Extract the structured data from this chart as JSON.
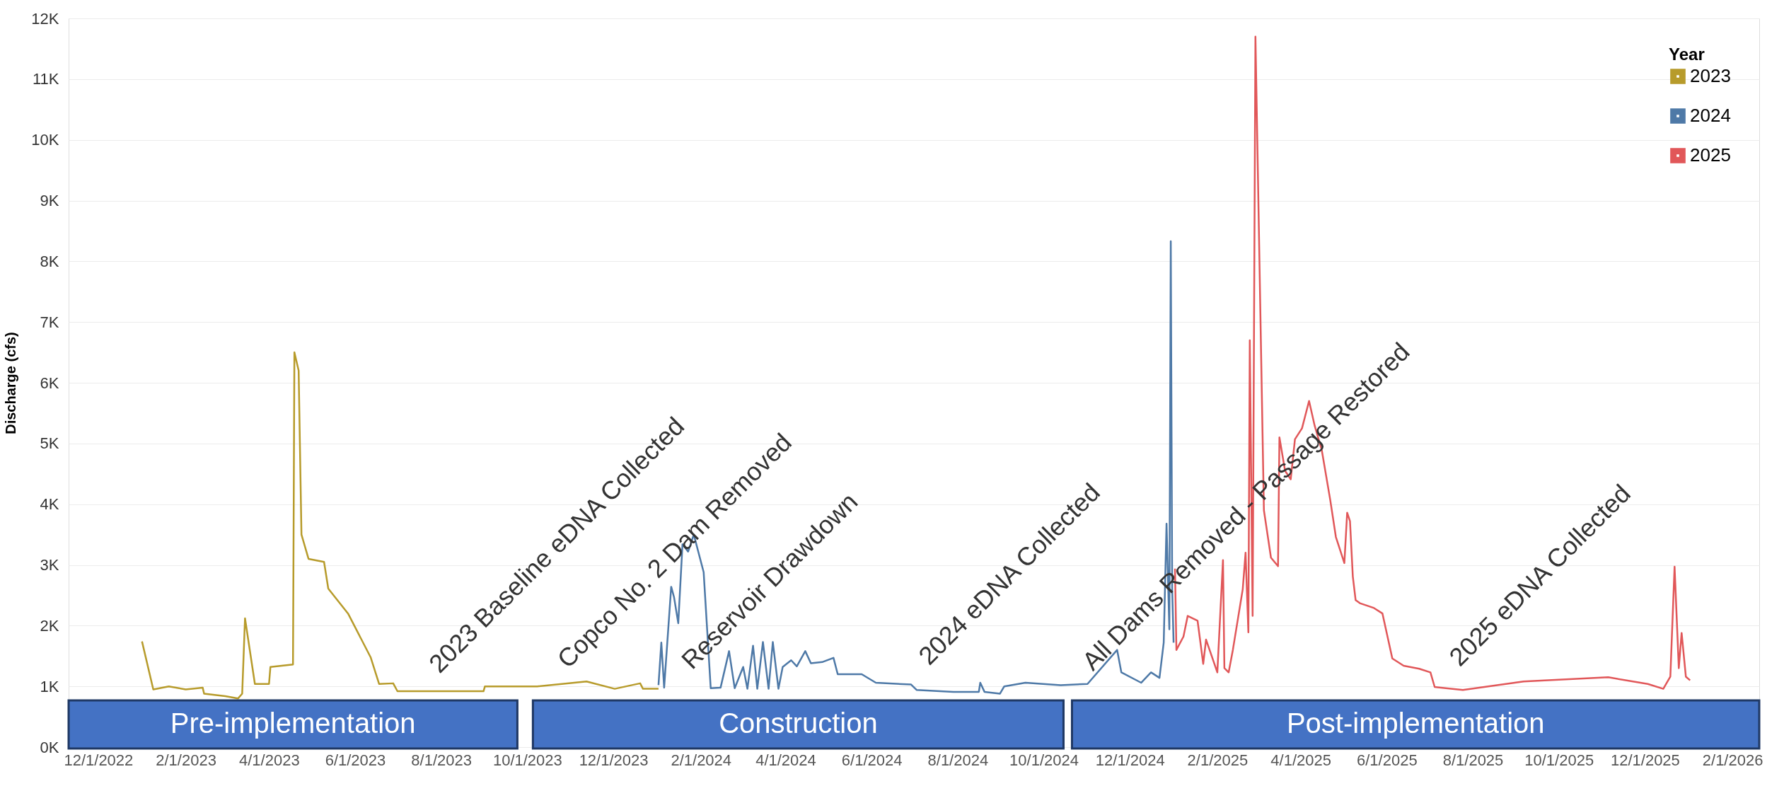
{
  "chart_data": {
    "type": "line",
    "ylabel": "Discharge (cfs)",
    "legend_title": "Year",
    "legend": "top right",
    "grid": "y",
    "marker": "none",
    "line_style": "solid",
    "xlim": [
      "2022-11-10",
      "2026-02-20"
    ],
    "ylim": [
      0,
      12000
    ],
    "xticks": [
      {
        "value": "2022-12-01",
        "label": "12/1/2022"
      },
      {
        "value": "2023-02-01",
        "label": "2/1/2023"
      },
      {
        "value": "2023-04-01",
        "label": "4/1/2023"
      },
      {
        "value": "2023-06-01",
        "label": "6/1/2023"
      },
      {
        "value": "2023-08-01",
        "label": "8/1/2023"
      },
      {
        "value": "2023-10-01",
        "label": "10/1/2023"
      },
      {
        "value": "2023-12-01",
        "label": "12/1/2023"
      },
      {
        "value": "2024-02-01",
        "label": "2/1/2024"
      },
      {
        "value": "2024-04-01",
        "label": "4/1/2024"
      },
      {
        "value": "2024-06-01",
        "label": "6/1/2024"
      },
      {
        "value": "2024-08-01",
        "label": "8/1/2024"
      },
      {
        "value": "2024-10-01",
        "label": "10/1/2024"
      },
      {
        "value": "2024-12-01",
        "label": "12/1/2024"
      },
      {
        "value": "2025-02-01",
        "label": "2/1/2025"
      },
      {
        "value": "2025-04-01",
        "label": "4/1/2025"
      },
      {
        "value": "2025-06-01",
        "label": "6/1/2025"
      },
      {
        "value": "2025-08-01",
        "label": "8/1/2025"
      },
      {
        "value": "2025-10-01",
        "label": "10/1/2025"
      },
      {
        "value": "2025-12-01",
        "label": "12/1/2025"
      },
      {
        "value": "2026-02-01",
        "label": "2/1/2026"
      }
    ],
    "yticks": [
      {
        "value": 0,
        "label": "0K"
      },
      {
        "value": 1000,
        "label": "1K"
      },
      {
        "value": 2000,
        "label": "2K"
      },
      {
        "value": 3000,
        "label": "3K"
      },
      {
        "value": 4000,
        "label": "4K"
      },
      {
        "value": 5000,
        "label": "5K"
      },
      {
        "value": 6000,
        "label": "6K"
      },
      {
        "value": 7000,
        "label": "7K"
      },
      {
        "value": 8000,
        "label": "8K"
      },
      {
        "value": 9000,
        "label": "9K"
      },
      {
        "value": 10000,
        "label": "10K"
      },
      {
        "value": 11000,
        "label": "11K"
      },
      {
        "value": 12000,
        "label": "12K"
      }
    ],
    "series": [
      {
        "name": "2023",
        "color": "#b79b2b",
        "x": [
          "2023-01-01",
          "2023-01-09",
          "2023-01-20",
          "2023-02-01",
          "2023-02-13",
          "2023-02-14",
          "2023-03-01",
          "2023-03-10",
          "2023-03-13",
          "2023-03-15",
          "2023-03-22",
          "2023-04-01",
          "2023-04-02",
          "2023-04-18",
          "2023-04-19",
          "2023-04-22",
          "2023-04-24",
          "2023-04-29",
          "2023-05-10",
          "2023-05-13",
          "2023-05-27",
          "2023-06-12",
          "2023-06-18",
          "2023-06-28",
          "2023-07-01",
          "2023-08-31",
          "2023-09-01",
          "2023-10-08",
          "2023-11-12",
          "2023-12-02",
          "2023-12-20",
          "2023-12-22",
          "2024-01-02"
        ],
        "values": [
          1740,
          950,
          1000,
          950,
          980,
          880,
          840,
          800,
          880,
          2120,
          1040,
          1040,
          1320,
          1360,
          6500,
          6200,
          3500,
          3100,
          3050,
          2610,
          2200,
          1480,
          1040,
          1050,
          920,
          920,
          1000,
          1000,
          1080,
          960,
          1050,
          960,
          960
        ]
      },
      {
        "name": "2024",
        "color": "#4e79a7",
        "x": [
          "2024-01-02",
          "2024-01-04",
          "2024-01-06",
          "2024-01-11",
          "2024-01-13",
          "2024-01-16",
          "2024-01-19",
          "2024-01-23",
          "2024-01-27",
          "2024-02-03",
          "2024-02-08",
          "2024-02-15",
          "2024-02-21",
          "2024-02-25",
          "2024-03-02",
          "2024-03-05",
          "2024-03-09",
          "2024-03-12",
          "2024-03-16",
          "2024-03-20",
          "2024-03-23",
          "2024-03-27",
          "2024-03-30",
          "2024-04-05",
          "2024-04-09",
          "2024-04-15",
          "2024-04-19",
          "2024-04-27",
          "2024-05-05",
          "2024-05-08",
          "2024-05-25",
          "2024-06-04",
          "2024-06-29",
          "2024-07-03",
          "2024-07-29",
          "2024-08-16",
          "2024-08-17",
          "2024-08-20",
          "2024-08-31",
          "2024-09-03",
          "2024-09-18",
          "2024-10-13",
          "2024-11-01",
          "2024-11-22",
          "2024-11-25",
          "2024-12-09",
          "2024-12-16",
          "2024-12-22",
          "2024-12-25",
          "2024-12-27",
          "2024-12-29",
          "2024-12-30",
          "2024-12-31",
          "2025-01-01"
        ],
        "values": [
          1020,
          1720,
          980,
          2640,
          2470,
          2040,
          3340,
          3220,
          3500,
          2880,
          970,
          980,
          1580,
          970,
          1320,
          960,
          1670,
          960,
          1730,
          960,
          1730,
          960,
          1320,
          1430,
          1330,
          1580,
          1380,
          1400,
          1470,
          1200,
          1200,
          1060,
          1030,
          940,
          910,
          910,
          1060,
          910,
          880,
          1000,
          1060,
          1020,
          1040,
          1600,
          1230,
          1060,
          1230,
          1140,
          1720,
          3680,
          1940,
          8330,
          2600,
          1720
        ]
      },
      {
        "name": "2025",
        "color": "#e15759",
        "x": [
          "2025-01-02",
          "2025-01-03",
          "2025-01-08",
          "2025-01-11",
          "2025-01-18",
          "2025-01-22",
          "2025-01-24",
          "2025-02-01",
          "2025-02-05",
          "2025-02-06",
          "2025-02-09",
          "2025-02-12",
          "2025-02-19",
          "2025-02-21",
          "2025-02-23",
          "2025-02-24",
          "2025-02-26",
          "2025-02-28",
          "2025-03-06",
          "2025-03-11",
          "2025-03-16",
          "2025-03-17",
          "2025-03-21",
          "2025-03-25",
          "2025-03-28",
          "2025-04-02",
          "2025-04-07",
          "2025-04-11",
          "2025-04-16",
          "2025-04-22",
          "2025-04-26",
          "2025-05-02",
          "2025-05-04",
          "2025-05-06",
          "2025-05-08",
          "2025-05-10",
          "2025-05-13",
          "2025-05-23",
          "2025-05-29",
          "2025-06-05",
          "2025-06-13",
          "2025-06-24",
          "2025-07-02",
          "2025-07-05",
          "2025-07-25",
          "2025-09-06",
          "2025-11-05",
          "2025-12-03",
          "2025-12-14",
          "2025-12-19",
          "2025-12-22",
          "2025-12-25",
          "2025-12-27",
          "2025-12-30",
          "2026-01-02"
        ],
        "values": [
          2940,
          1600,
          1820,
          2160,
          2080,
          1370,
          1770,
          1230,
          3080,
          1300,
          1230,
          1600,
          2600,
          3200,
          1890,
          6700,
          2160,
          11700,
          3900,
          3120,
          2980,
          5100,
          4550,
          4410,
          5070,
          5250,
          5700,
          5290,
          4890,
          4070,
          3460,
          3030,
          3860,
          3720,
          2810,
          2420,
          2370,
          2290,
          2200,
          1460,
          1340,
          1290,
          1230,
          990,
          940,
          1080,
          1150,
          1040,
          960,
          1160,
          2970,
          1300,
          1880,
          1160,
          1100
        ]
      }
    ],
    "bands": [
      {
        "axis": "x",
        "from": "2022-11-10",
        "to": "2023-09-24",
        "label": "Pre-implementation",
        "color": "#4472c4"
      },
      {
        "axis": "x",
        "from": "2023-10-05",
        "to": "2024-10-15",
        "label": "Construction",
        "color": "#4472c4"
      },
      {
        "axis": "x",
        "from": "2024-10-21",
        "to": "2026-02-20",
        "label": "Post-implementation",
        "color": "#4472c4"
      }
    ],
    "annotations": [
      {
        "text": "2023 Baseline eDNA Collected",
        "x": "2023-07-11",
        "y": 920
      },
      {
        "text": "Copco No. 2 Dam Removed",
        "x": "2023-10-10",
        "y": 1000
      },
      {
        "text": "Reservoir Drawdown",
        "x": "2024-01-06",
        "y": 980
      },
      {
        "text": "2024 eDNA Collected",
        "x": "2024-06-22",
        "y": 1050
      },
      {
        "text": "All Dams Removed - Passage Restored",
        "x": "2024-10-16",
        "y": 960
      },
      {
        "text": "2025 eDNA Collected",
        "x": "2025-07-03",
        "y": 1030
      }
    ]
  }
}
